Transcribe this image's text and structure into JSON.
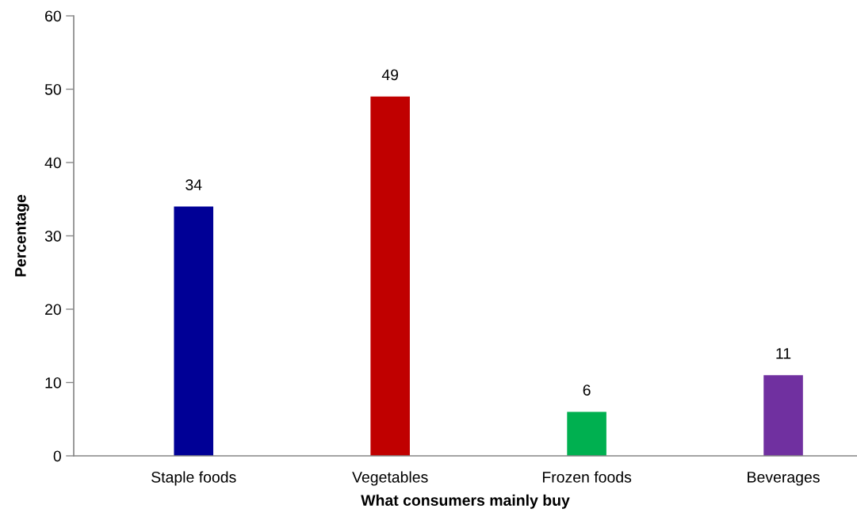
{
  "chart_data": {
    "type": "bar",
    "xlabel": "What consumers mainly buy",
    "ylabel": "Percentage",
    "categories": [
      "Staple foods",
      "Vegetables",
      "Frozen foods",
      "Beverages"
    ],
    "values": [
      34,
      49,
      6,
      11
    ],
    "colors": [
      "#000096",
      "#c00000",
      "#00b050",
      "#7030a0"
    ],
    "ylim": [
      0,
      60
    ],
    "yticks": [
      0,
      10,
      20,
      30,
      40,
      50,
      60
    ],
    "data_labels": true,
    "grid": false,
    "legend": false
  }
}
